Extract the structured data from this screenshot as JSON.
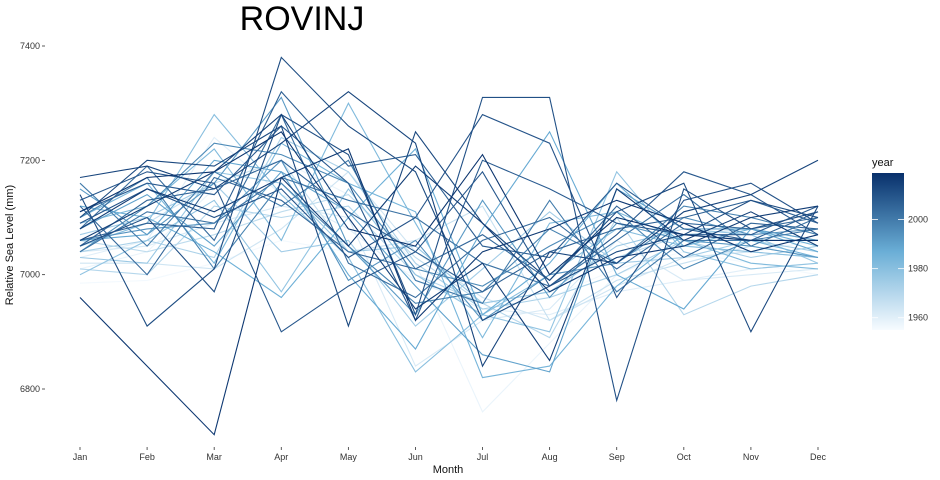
{
  "chart_data": {
    "type": "line",
    "title": "ROVINJ",
    "xlabel": "Month",
    "ylabel": "Relative Sea Level (mm)",
    "categories": [
      "Jan",
      "Feb",
      "Mar",
      "Apr",
      "May",
      "Jun",
      "Jul",
      "Aug",
      "Sep",
      "Oct",
      "Nov",
      "Dec"
    ],
    "y_ticks": [
      6800,
      7000,
      7200,
      7400
    ],
    "ylim": [
      6710,
      7420
    ],
    "grid": false,
    "color_scale": {
      "name": "year",
      "low_color": "#f7fbff",
      "mid_color": "#6aaed6",
      "high_color": "#08306b",
      "range": [
        1955,
        2019
      ],
      "ticks": [
        1960,
        1980,
        2000
      ]
    },
    "legend_position": "right",
    "series": [
      {
        "year": 1956,
        "values": [
          6985,
          6990,
          7020,
          7060,
          7040,
          7000,
          6950,
          6960,
          7010,
          7040,
          7020,
          7000
        ]
      },
      {
        "year": 1958,
        "values": [
          7010,
          7040,
          7150,
          7200,
          7140,
          7020,
          6760,
          6880,
          7000,
          7050,
          7040,
          7060
        ]
      },
      {
        "year": 1960,
        "values": [
          7030,
          7060,
          7240,
          7140,
          7080,
          6990,
          6940,
          6930,
          6970,
          6990,
          7010,
          7020
        ]
      },
      {
        "year": 1962,
        "values": [
          7040,
          7050,
          7090,
          7120,
          7100,
          6840,
          6920,
          6940,
          7060,
          6990,
          7000,
          7010
        ]
      },
      {
        "year": 1964,
        "values": [
          7020,
          7020,
          7010,
          7080,
          7180,
          7040,
          6960,
          6920,
          6980,
          7030,
          7040,
          7030
        ]
      },
      {
        "year": 1966,
        "values": [
          7050,
          7090,
          7160,
          7200,
          7040,
          7060,
          7120,
          6920,
          6990,
          7020,
          7050,
          7030
        ]
      },
      {
        "year": 1968,
        "values": [
          7060,
          7040,
          7070,
          7110,
          7140,
          7030,
          6950,
          6970,
          7030,
          7070,
          7080,
          7060
        ]
      },
      {
        "year": 1970,
        "values": [
          7010,
          7000,
          7120,
          7100,
          7120,
          7000,
          6950,
          6890,
          7100,
          6930,
          6980,
          7000
        ]
      },
      {
        "year": 1972,
        "values": [
          7040,
          7060,
          7030,
          7240,
          7180,
          7020,
          6940,
          6960,
          7000,
          7060,
          7030,
          7050
        ]
      },
      {
        "year": 1974,
        "values": [
          7070,
          7100,
          7160,
          7040,
          7060,
          6910,
          7010,
          7110,
          7020,
          7030,
          7060,
          7040
        ]
      },
      {
        "year": 1976,
        "values": [
          7030,
          7020,
          7180,
          7160,
          7040,
          7050,
          6950,
          6970,
          7050,
          7080,
          7070,
          7020
        ]
      },
      {
        "year": 1978,
        "values": [
          7000,
          7060,
          7130,
          6970,
          7150,
          7000,
          6930,
          6900,
          7180,
          7040,
          7010,
          7020
        ]
      },
      {
        "year": 1980,
        "values": [
          7050,
          7090,
          7280,
          7140,
          7030,
          6830,
          6930,
          7000,
          7080,
          7050,
          7040,
          7030
        ]
      },
      {
        "year": 1982,
        "values": [
          7090,
          7120,
          7220,
          7060,
          7300,
          7090,
          6890,
          7090,
          7110,
          7060,
          7020,
          7010
        ]
      },
      {
        "year": 1984,
        "values": [
          7100,
          7160,
          7020,
          7230,
          7160,
          7110,
          6820,
          6840,
          6980,
          7070,
          7060,
          7030
        ]
      },
      {
        "year": 1986,
        "values": [
          7120,
          7100,
          7040,
          6960,
          7100,
          7220,
          6930,
          7020,
          7160,
          7050,
          7080,
          7050
        ]
      },
      {
        "year": 1988,
        "values": [
          7060,
          7070,
          7200,
          7180,
          7000,
          6870,
          7080,
          7250,
          7000,
          6940,
          7080,
          7040
        ]
      },
      {
        "year": 1990,
        "values": [
          7080,
          7140,
          7050,
          7180,
          7110,
          6980,
          6860,
          6830,
          7150,
          7080,
          7080,
          7060
        ]
      },
      {
        "year": 1992,
        "values": [
          7150,
          7070,
          7160,
          7310,
          7050,
          6930,
          7130,
          6960,
          7090,
          7060,
          7050,
          7030
        ]
      },
      {
        "year": 1994,
        "values": [
          7060,
          7080,
          7090,
          7200,
          6990,
          7060,
          6920,
          7000,
          7020,
          7100,
          7070,
          7080
        ]
      },
      {
        "year": 1996,
        "values": [
          7040,
          7120,
          7230,
          7210,
          7160,
          7010,
          6980,
          7050,
          7110,
          7010,
          7060,
          7060
        ]
      },
      {
        "year": 1998,
        "values": [
          7100,
          7170,
          7010,
          7160,
          7050,
          6950,
          6970,
          7080,
          7020,
          7120,
          7100,
          7070
        ]
      },
      {
        "year": 2000,
        "values": [
          7160,
          7050,
          7180,
          7120,
          7200,
          6990,
          6950,
          7130,
          6970,
          7060,
          7060,
          7080
        ]
      },
      {
        "year": 2002,
        "values": [
          7040,
          7110,
          7090,
          7170,
          7130,
          7100,
          7020,
          6980,
          7060,
          7140,
          7050,
          7100
        ]
      },
      {
        "year": 2004,
        "values": [
          7080,
          7190,
          7060,
          7280,
          7020,
          6960,
          7060,
          7100,
          7010,
          7090,
          7080,
          7100
        ]
      },
      {
        "year": 2005,
        "values": [
          7120,
          7000,
          7170,
          7130,
          7040,
          7010,
          7070,
          6990,
          7120,
          7030,
          7090,
          7080
        ]
      },
      {
        "year": 2006,
        "values": [
          7050,
          7130,
          7150,
          7200,
          7110,
          7040,
          6970,
          7040,
          7080,
          7100,
          7130,
          7090
        ]
      },
      {
        "year": 2007,
        "values": [
          7060,
          7090,
          7080,
          7320,
          7190,
          7210,
          7050,
          7030,
          7160,
          7080,
          7060,
          7110
        ]
      },
      {
        "year": 2008,
        "values": [
          7110,
          7160,
          7140,
          7260,
          7160,
          6920,
          7200,
          7150,
          7090,
          7070,
          7070,
          7120
        ]
      },
      {
        "year": 2009,
        "values": [
          7130,
          7180,
          7160,
          6900,
          6980,
          7040,
          7180,
          6980,
          7070,
          7180,
          7140,
          7070
        ]
      },
      {
        "year": 2010,
        "values": [
          7090,
          7150,
          7100,
          7150,
          7030,
          7100,
          7280,
          7230,
          6960,
          7130,
          7160,
          7090
        ]
      },
      {
        "year": 2011,
        "values": [
          7050,
          7100,
          6970,
          7280,
          7210,
          6930,
          7310,
          7310,
          6780,
          7150,
          7080,
          7110
        ]
      },
      {
        "year": 2012,
        "values": [
          7140,
          6910,
          7010,
          7380,
          7260,
          7180,
          6920,
          6980,
          7040,
          7070,
          7130,
          7100
        ]
      },
      {
        "year": 2013,
        "values": [
          7100,
          7200,
          7190,
          7260,
          6910,
          7250,
          7090,
          6990,
          7110,
          7160,
          6900,
          7120
        ]
      },
      {
        "year": 2014,
        "values": [
          7170,
          7190,
          7150,
          7230,
          7320,
          7230,
          6840,
          7040,
          7020,
          7110,
          7140,
          7200
        ]
      },
      {
        "year": 2015,
        "values": [
          7060,
          7120,
          7180,
          7280,
          7100,
          6940,
          7020,
          6850,
          7150,
          7060,
          7110,
          7050
        ]
      },
      {
        "year": 2016,
        "values": [
          7080,
          7150,
          7110,
          7170,
          7050,
          7190,
          7090,
          6970,
          7030,
          7050,
          7100,
          7120
        ]
      },
      {
        "year": 2017,
        "values": [
          6960,
          6840,
          6720,
          7170,
          7220,
          6920,
          7040,
          7080,
          7130,
          7090,
          7040,
          7070
        ]
      },
      {
        "year": 2018,
        "values": [
          7110,
          7170,
          7180,
          7250,
          7080,
          7050,
          7210,
          7000,
          7100,
          7070,
          7060,
          7060
        ]
      }
    ]
  }
}
